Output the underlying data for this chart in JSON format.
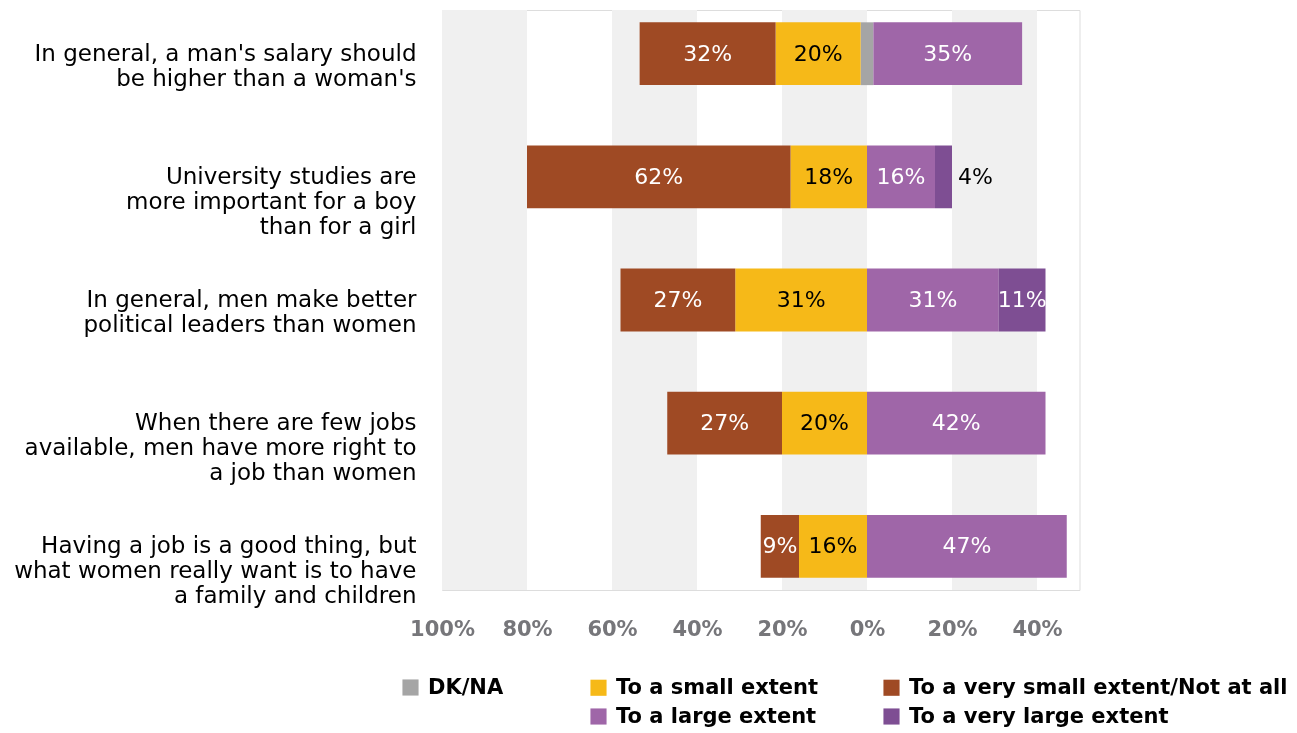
{
  "chart_data": {
    "type": "bar",
    "orientation": "horizontal",
    "categories": [
      "In general, a man's salary should\nbe higher than a woman's",
      "University studies are\nmore important for a boy\nthan for a girl",
      "In general, men make better\npolitical leaders than women",
      "When there are few jobs\navailable, men have more right to\na job than women",
      "Having a job is a good thing, but\nwhat women really want is to have\na family and children"
    ],
    "series": [
      {
        "name": "DK/NA",
        "color": "#a5a5a5",
        "base": [
          -1.5,
          null,
          null,
          null,
          null
        ],
        "values": [
          3,
          null,
          null,
          null,
          null
        ]
      },
      {
        "name": "To a small extent",
        "color": "#f6b918",
        "base": [
          -21.5,
          -18,
          -31,
          -20,
          -16
        ],
        "values": [
          20,
          18,
          31,
          20,
          16
        ],
        "value_labels": [
          "20%",
          "18%",
          "31%",
          "20%",
          "16%"
        ]
      },
      {
        "name": "To a very small extent/Not at all",
        "color": "#9f4a24",
        "base": [
          -53.5,
          -80,
          -58,
          -47,
          -25
        ],
        "values": [
          32,
          62,
          27,
          27,
          9
        ],
        "value_labels": [
          "32%",
          "62%",
          "27%",
          "27%",
          "9%"
        ]
      },
      {
        "name": "To a large extent",
        "color": "#9f66a8",
        "base": [
          1.5,
          0,
          0,
          0,
          0
        ],
        "values": [
          35,
          16,
          31,
          42,
          47
        ],
        "value_labels": [
          "35%",
          "16%",
          "31%",
          "42%",
          "47%"
        ]
      },
      {
        "name": "To a very large extent",
        "color": "#7e4e93",
        "base": [
          null,
          16,
          31,
          null,
          null
        ],
        "values": [
          null,
          4,
          11,
          null,
          null
        ],
        "value_labels": [
          null,
          "4%",
          "11%",
          null,
          null
        ]
      }
    ],
    "xlim": [
      -100,
      50
    ],
    "xticks": [
      {
        "value": -100,
        "label": "100%"
      },
      {
        "value": -80,
        "label": "80%"
      },
      {
        "value": -60,
        "label": "60%"
      },
      {
        "value": -40,
        "label": "40%"
      },
      {
        "value": -20,
        "label": "20%"
      },
      {
        "value": 0,
        "label": "0%"
      },
      {
        "value": 20,
        "label": "20%"
      },
      {
        "value": 40,
        "label": "40%"
      }
    ],
    "bands": [
      {
        "axis": "x",
        "from": -100,
        "to": -80,
        "color": "#f0f0f0"
      },
      {
        "axis": "x",
        "from": -60,
        "to": -40,
        "color": "#f0f0f0"
      },
      {
        "axis": "x",
        "from": -20,
        "to": 0,
        "color": "#f0f0f0"
      },
      {
        "axis": "x",
        "from": 20,
        "to": 40,
        "color": "#f0f0f0"
      }
    ],
    "grid": false,
    "legend": "bottom"
  }
}
